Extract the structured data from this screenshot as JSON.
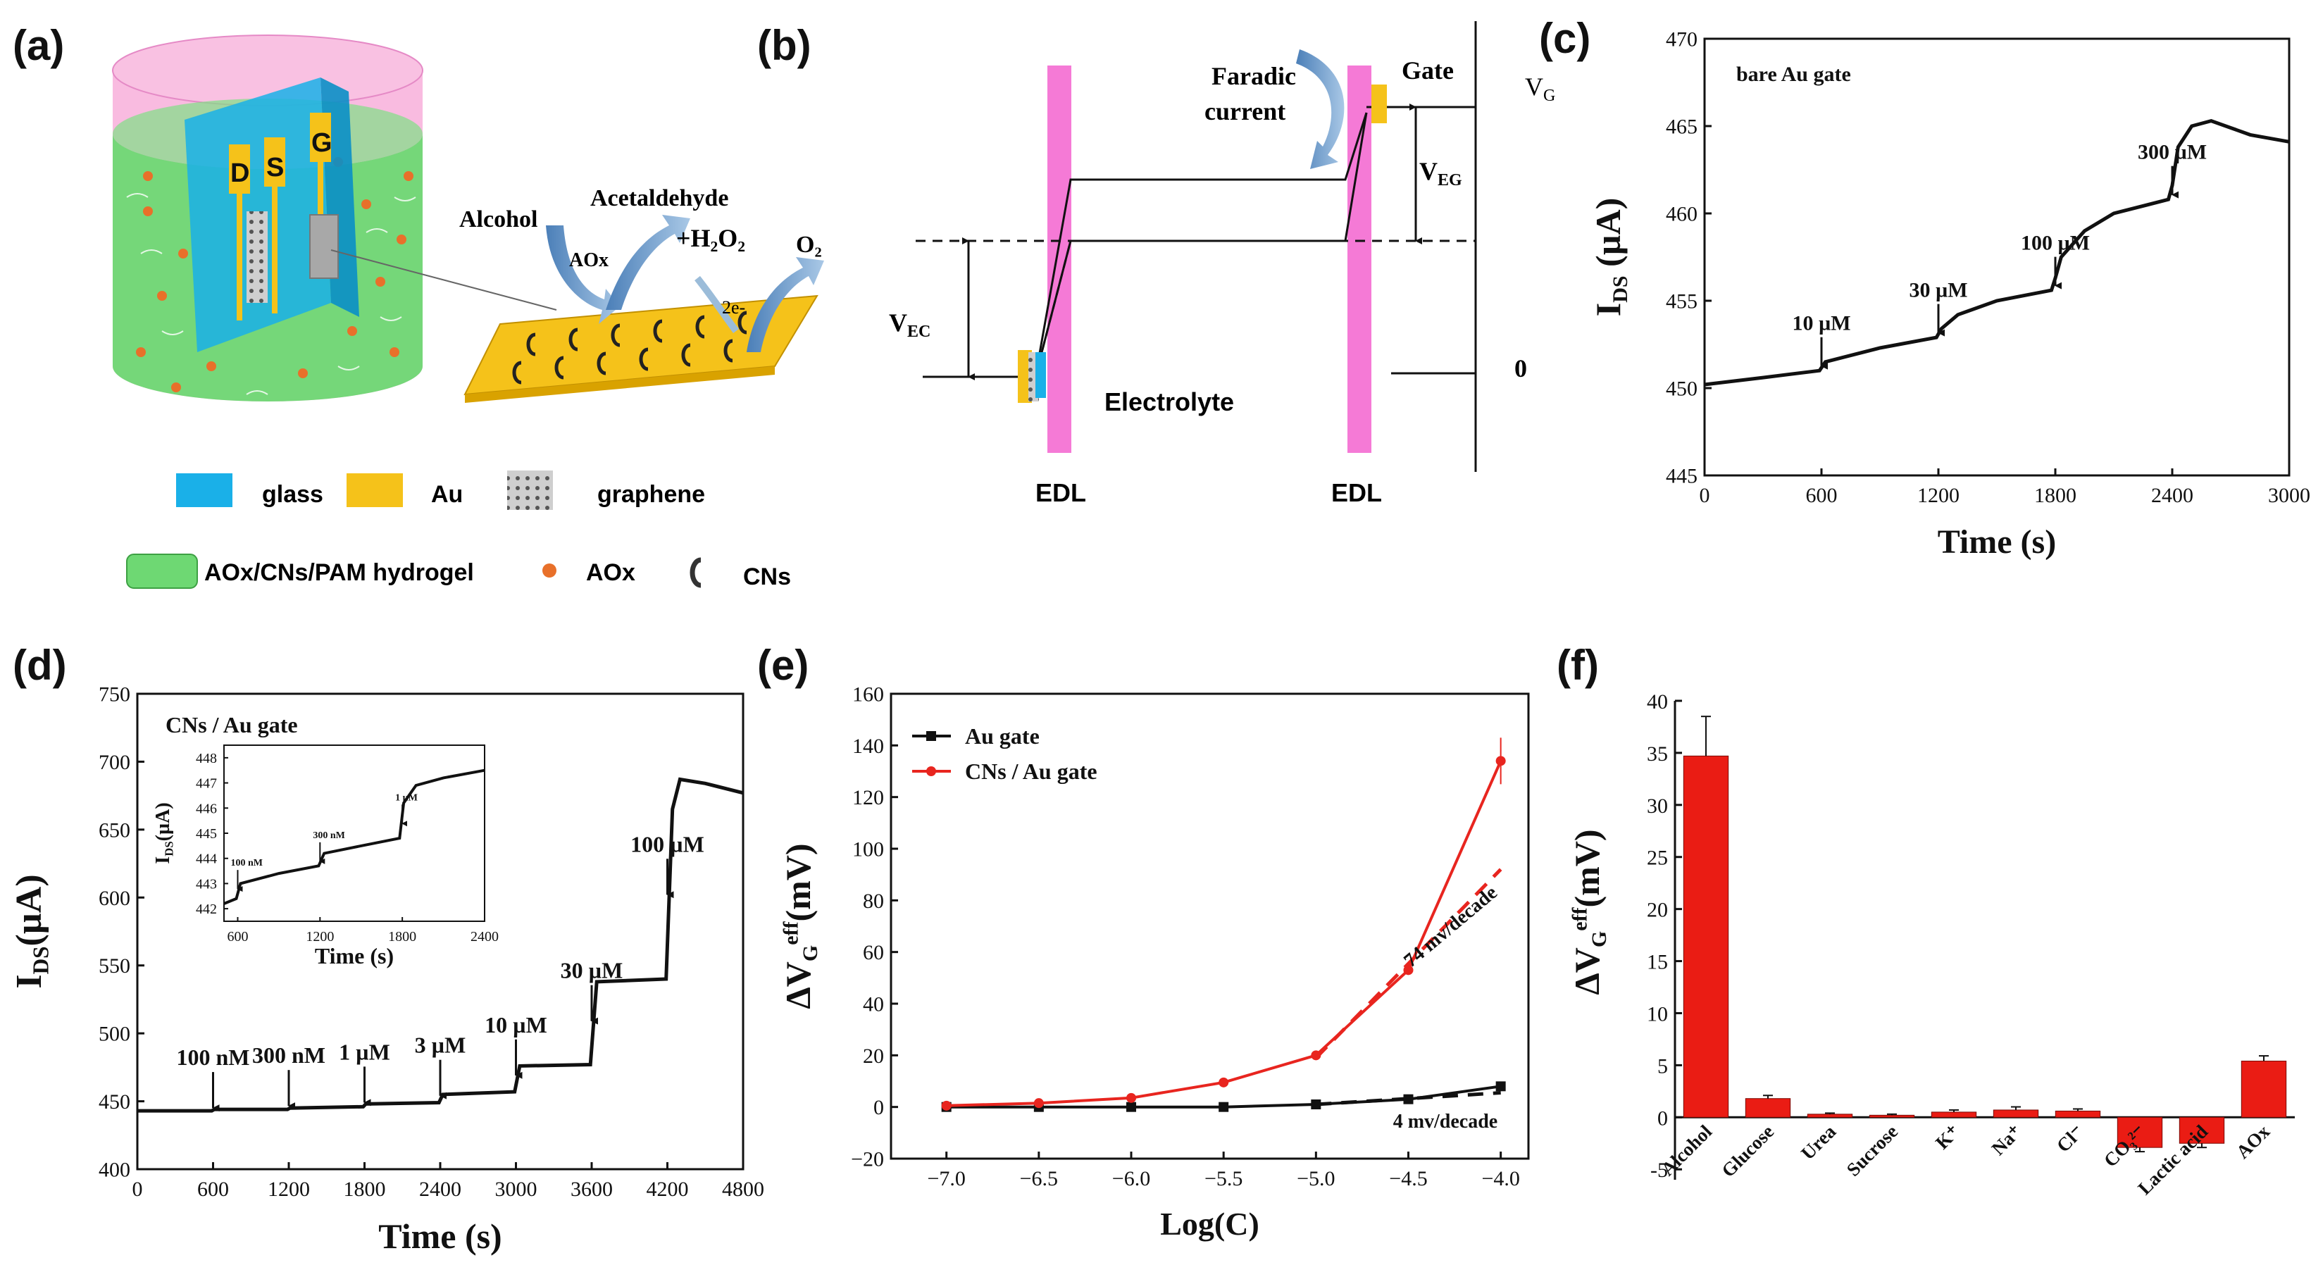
{
  "panels": {
    "a": "(a)",
    "b": "(b)",
    "c": "(c)",
    "d": "(d)",
    "e": "(e)",
    "f": "(f)"
  },
  "schematic_a": {
    "electrodes": [
      "D",
      "S",
      "G"
    ],
    "alcohol": "Alcohol",
    "aox": "AOx",
    "acetaldehyde": "Acetaldehyde",
    "h2o2": "+H₂O₂",
    "o2": "O₂",
    "electrons": "2e-",
    "legend": {
      "glass": "glass",
      "au": "Au",
      "graphene": "graphene",
      "hydrogel": "AOx/CNs/PAM hydrogel",
      "aox": "AOx",
      "cns": "CNs"
    },
    "colors": {
      "glass": "#1ab0e8",
      "au": "#f5c21a",
      "hydrogel": "#6ed873",
      "cap": "#f7a4d6",
      "aox": "#e8702a"
    }
  },
  "schematic_b": {
    "faradic": [
      "Faradic",
      "current"
    ],
    "gate": "Gate",
    "vg": "V",
    "vg_sub": "G",
    "veg": "V",
    "veg_sub": "EG",
    "vec": "V",
    "vec_sub": "EC",
    "zero": "0",
    "electrolyte": "Electrolyte",
    "edl_left": "EDL",
    "edl_right": "EDL",
    "colors": {
      "edl": "#f57ad6"
    }
  },
  "chart_data": [
    {
      "panel": "c",
      "type": "line",
      "title": "bare  Au gate",
      "xlabel": "Time (s)",
      "ylabel": "I",
      "ylabel_sub": "DS",
      "ylabel_unit": " (µA)",
      "xlim": [
        0,
        3000
      ],
      "ylim": [
        445,
        470
      ],
      "xticks": [
        0,
        600,
        1200,
        1800,
        2400,
        3000
      ],
      "yticks": [
        445,
        450,
        455,
        460,
        465,
        470
      ],
      "x": [
        0,
        300,
        590,
        620,
        900,
        1190,
        1215,
        1300,
        1500,
        1780,
        1800,
        1830,
        1950,
        2100,
        2380,
        2400,
        2430,
        2500,
        2600,
        2700,
        2800,
        3000
      ],
      "y": [
        450.2,
        450.6,
        451.0,
        451.5,
        452.3,
        452.9,
        453.4,
        454.2,
        455.0,
        455.6,
        456.3,
        457.5,
        459.0,
        460.0,
        460.8,
        461.6,
        463.8,
        465.0,
        465.3,
        464.9,
        464.5,
        464.1
      ],
      "annotations": [
        {
          "label": "10 µM",
          "x": 600,
          "y": 451.1
        },
        {
          "label": "30 µM",
          "x": 1200,
          "y": 453.0
        },
        {
          "label": "100 µM",
          "x": 1800,
          "y": 455.7
        },
        {
          "label": "300 µM",
          "x": 2400,
          "y": 460.9
        }
      ]
    },
    {
      "panel": "d",
      "type": "line",
      "title": "CNs / Au gate",
      "xlabel": "Time (s)",
      "ylabel": "I",
      "ylabel_sub": "DS",
      "ylabel_unit": "(µA)",
      "xlim": [
        0,
        4800
      ],
      "ylim": [
        400,
        750
      ],
      "xticks": [
        0,
        600,
        1200,
        1800,
        2400,
        3000,
        3600,
        4200,
        4800
      ],
      "yticks": [
        400,
        450,
        500,
        550,
        600,
        650,
        700,
        750
      ],
      "x": [
        0,
        590,
        610,
        1190,
        1210,
        1790,
        1810,
        2390,
        2420,
        2990,
        3030,
        3590,
        3640,
        4190,
        4240,
        4300,
        4500,
        4800
      ],
      "y": [
        443,
        443,
        444,
        444,
        445,
        446,
        448,
        449,
        455,
        457,
        476,
        477,
        538,
        540,
        665,
        687,
        684,
        677
      ],
      "annotations": [
        {
          "label": "100 nM",
          "x": 600,
          "y": 443
        },
        {
          "label": "300 nM",
          "x": 1200,
          "y": 444.5
        },
        {
          "label": "1 µM",
          "x": 1800,
          "y": 447
        },
        {
          "label": "3 µM",
          "x": 2400,
          "y": 452
        },
        {
          "label": "10 µM",
          "x": 3000,
          "y": 467
        },
        {
          "label": "30 µM",
          "x": 3600,
          "y": 507
        },
        {
          "label": "100 µM",
          "x": 4200,
          "y": 600
        }
      ],
      "inset": {
        "xlabel": "Time (s)",
        "ylabel": "I",
        "ylabel_sub": "DS",
        "ylabel_unit": "(µA)",
        "xlim": [
          500,
          2400
        ],
        "ylim": [
          441.5,
          448.5
        ],
        "xticks": [
          600,
          1200,
          1800,
          2400
        ],
        "yticks": [
          442,
          443,
          444,
          445,
          446,
          447,
          448
        ],
        "x": [
          500,
          590,
          620,
          900,
          1190,
          1230,
          1500,
          1780,
          1810,
          1900,
          2100,
          2400
        ],
        "y": [
          442.2,
          442.4,
          443.0,
          443.4,
          443.7,
          444.2,
          444.5,
          444.8,
          446.2,
          446.9,
          447.2,
          447.5
        ],
        "annotations": [
          {
            "label": "100 nM",
            "x": 600,
            "y": 442.7
          },
          {
            "label": "300 nM",
            "x": 1200,
            "y": 443.8
          },
          {
            "label": "1 µM",
            "x": 1800,
            "y": 445.3
          }
        ]
      }
    },
    {
      "panel": "e",
      "type": "line",
      "xlabel": "Log(C)",
      "ylabel": "ΔV",
      "ylabel_sub": "G",
      "ylabel_sup": "eff",
      "ylabel_unit": "(mV)",
      "xlim": [
        -7.3,
        -3.85
      ],
      "ylim": [
        -20,
        160
      ],
      "xticks": [
        -7.0,
        -6.5,
        -6.0,
        -5.5,
        -5.0,
        -4.5,
        -4.0
      ],
      "xtick_labels": [
        "−7.0",
        "−6.5",
        "−6.0",
        "−5.5",
        "−5.0",
        "−4.5",
        "−4.0"
      ],
      "yticks": [
        -20,
        0,
        20,
        40,
        60,
        80,
        100,
        120,
        140,
        160
      ],
      "ytick_labels": [
        "−20",
        "0",
        "20",
        "40",
        "60",
        "80",
        "100",
        "120",
        "140",
        "160"
      ],
      "series": [
        {
          "name": "Au gate",
          "color": "#111111",
          "x": [
            -7.0,
            -6.5,
            -6.0,
            -5.5,
            -5.0,
            -4.5,
            -4.0
          ],
          "y": [
            0,
            0,
            0,
            0,
            1,
            3,
            8
          ],
          "err": [
            0.5,
            0.5,
            0.5,
            0.5,
            0.5,
            0.8,
            1.5
          ],
          "fit": {
            "x": [
              -5.0,
              -4.0
            ],
            "y": [
              1,
              5.5
            ]
          }
        },
        {
          "name": "CNs / Au gate",
          "color": "#e8251f",
          "x": [
            -7.0,
            -6.5,
            -6.0,
            -5.5,
            -5.0,
            -4.5,
            -4.0
          ],
          "y": [
            0.5,
            1.5,
            3.5,
            9.5,
            20,
            53,
            134
          ],
          "err": [
            0.5,
            0.5,
            0.5,
            0.8,
            1.2,
            1.5,
            9
          ],
          "fit": {
            "x": [
              -5.0,
              -4.0
            ],
            "y": [
              19,
              92
            ]
          }
        }
      ],
      "annotations": [
        {
          "label": "74 mv/decade",
          "x": -4.25,
          "y": 68,
          "rotate": -40
        },
        {
          "label": "4 mv/decade",
          "x": -4.3,
          "y": -8,
          "rotate": 0
        }
      ]
    },
    {
      "panel": "f",
      "type": "bar",
      "ylabel": "ΔV",
      "ylabel_sub": "G",
      "ylabel_sup": "eff",
      "ylabel_unit": "(mV)",
      "ylim": [
        -6,
        40
      ],
      "yticks": [
        -5,
        0,
        5,
        10,
        15,
        20,
        25,
        30,
        35,
        40
      ],
      "categories": [
        "Alcohol",
        "Glucose",
        "Urea",
        "Sucrose",
        "K⁺",
        "Na⁺",
        "Cl⁻",
        "CO₃²⁻",
        "Lactic acid",
        "AOx"
      ],
      "values": [
        34.7,
        1.8,
        0.3,
        0.2,
        0.5,
        0.7,
        0.6,
        -2.9,
        -2.5,
        5.4
      ],
      "errors": [
        3.8,
        0.3,
        0.1,
        0.1,
        0.2,
        0.3,
        0.2,
        0.4,
        0.4,
        0.5
      ],
      "color": "#ea1c14"
    }
  ]
}
